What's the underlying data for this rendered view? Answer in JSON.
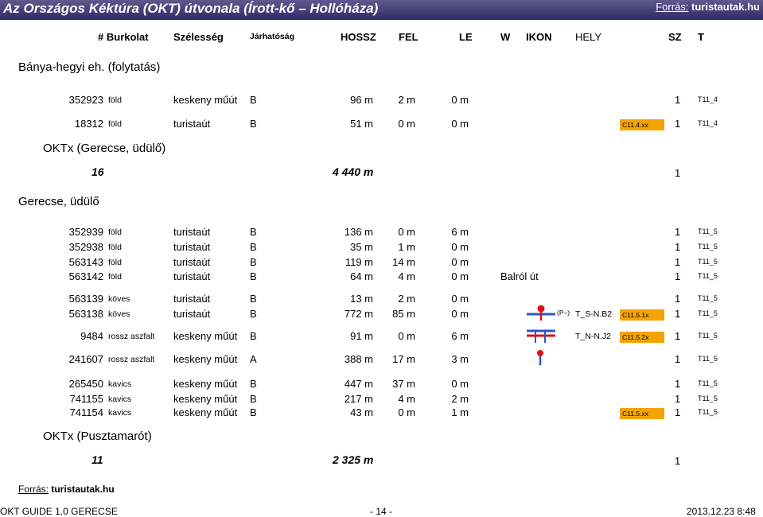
{
  "header": {
    "title": "Az Országos Kéktúra (OKT) útvonala (Írott-kő – Hollóháza)",
    "source_label": "Forrás:",
    "source_link": "turistautak.hu"
  },
  "columns": [
    "# Burkolat",
    "Szélesség",
    "Járhatóság",
    "HOSSZ",
    "FEL",
    "LE",
    "W",
    "IKON",
    "HELY",
    "SZ",
    "T"
  ],
  "sections": {
    "banya": "Bánya-hegyi eh. (folytatás)",
    "oktx_gerecse": "OKTx (Gerecse, üdülő)",
    "gerecse": "Gerecse, üdülő",
    "oktx_pusztamarot": "OKTx (Pusztamarót)"
  },
  "rows": [
    {
      "id": "352923",
      "cat": "föld",
      "width": "keskeny műút",
      "pass": "B",
      "len": "96 m",
      "up": "2 m",
      "down": "0 m",
      "w": "",
      "place": "",
      "badge": "",
      "sz": "1",
      "t": "T11_4"
    },
    {
      "id": "18312",
      "cat": "föld",
      "width": "turistaút",
      "pass": "B",
      "len": "51 m",
      "up": "0 m",
      "down": "0 m",
      "w": "",
      "place": "",
      "badge": "C11.4.xx",
      "sz": "1",
      "t": "T11_4"
    },
    {
      "id": "352939",
      "cat": "föld",
      "width": "turistaút",
      "pass": "B",
      "len": "136 m",
      "up": "0 m",
      "down": "6 m",
      "w": "",
      "place": "",
      "badge": "",
      "sz": "1",
      "t": "T11_5"
    },
    {
      "id": "352938",
      "cat": "föld",
      "width": "turistaút",
      "pass": "B",
      "len": "35 m",
      "up": "1 m",
      "down": "0 m",
      "w": "",
      "place": "",
      "badge": "",
      "sz": "1",
      "t": "T11_5"
    },
    {
      "id": "563143",
      "cat": "föld",
      "width": "turistaút",
      "pass": "B",
      "len": "119 m",
      "up": "14 m",
      "down": "0 m",
      "w": "",
      "place": "",
      "badge": "",
      "sz": "1",
      "t": "T11_5"
    },
    {
      "id": "563142",
      "cat": "föld",
      "width": "turistaút",
      "pass": "B",
      "len": "64 m",
      "up": "4 m",
      "down": "0 m",
      "w": "Balról út",
      "place": "",
      "badge": "",
      "sz": "1",
      "t": "T11_5"
    },
    {
      "id": "563139",
      "cat": "köves",
      "width": "turistaút",
      "pass": "B",
      "len": "13 m",
      "up": "2 m",
      "down": "0 m",
      "w": "",
      "place": "",
      "badge": "",
      "sz": "1",
      "t": "T11_5"
    },
    {
      "id": "563138",
      "cat": "köves",
      "width": "turistaút",
      "pass": "B",
      "len": "772 m",
      "up": "85 m",
      "down": "0 m",
      "w": "",
      "place": "T_S-N.B2",
      "badge": "C11.5.1x",
      "sz": "1",
      "t": "T11_5"
    },
    {
      "id": "9484",
      "cat": "rossz aszfalt",
      "width": "keskeny műút",
      "pass": "B",
      "len": "91 m",
      "up": "0 m",
      "down": "6 m",
      "w": "",
      "place": "T_N-N.J2",
      "badge": "C11.5.2x",
      "sz": "1",
      "t": "T11_5"
    },
    {
      "id": "241607",
      "cat": "rossz aszfalt",
      "width": "keskeny műút",
      "pass": "A",
      "len": "388 m",
      "up": "17 m",
      "down": "3 m",
      "w": "",
      "place": "",
      "badge": "",
      "sz": "1",
      "t": "T11_5"
    },
    {
      "id": "265450",
      "cat": "kavics",
      "width": "keskeny műút",
      "pass": "B",
      "len": "447 m",
      "up": "37 m",
      "down": "0 m",
      "w": "",
      "place": "",
      "badge": "",
      "sz": "1",
      "t": "T11_5"
    },
    {
      "id": "741155",
      "cat": "kavics",
      "width": "keskeny műút",
      "pass": "B",
      "len": "217 m",
      "up": "4 m",
      "down": "2 m",
      "w": "",
      "place": "",
      "badge": "",
      "sz": "1",
      "t": "T11_5"
    },
    {
      "id": "741154",
      "cat": "kavics",
      "width": "keskeny műút",
      "pass": "B",
      "len": "43 m",
      "up": "0 m",
      "down": "1 m",
      "w": "",
      "place": "",
      "badge": "C11.5.xx",
      "sz": "1",
      "t": "T11_5"
    }
  ],
  "totals": [
    {
      "count": "16",
      "length": "4 440 m",
      "sz": "1"
    },
    {
      "count": "11",
      "length": "2 325 m",
      "sz": "1"
    }
  ],
  "icon_note": "(P–)",
  "footer": {
    "source_label": "Forrás:",
    "source_link": "turistautak.hu",
    "guide": "OKT GUIDE 1.0  GERECSE",
    "page": "- 14 -",
    "date": "2013.12.23  8:48"
  },
  "colors": {
    "title_bar": "#2d2a66",
    "badge": "#f5a300",
    "sign_red": "#e01010",
    "sign_blue": "#2a56c6"
  }
}
